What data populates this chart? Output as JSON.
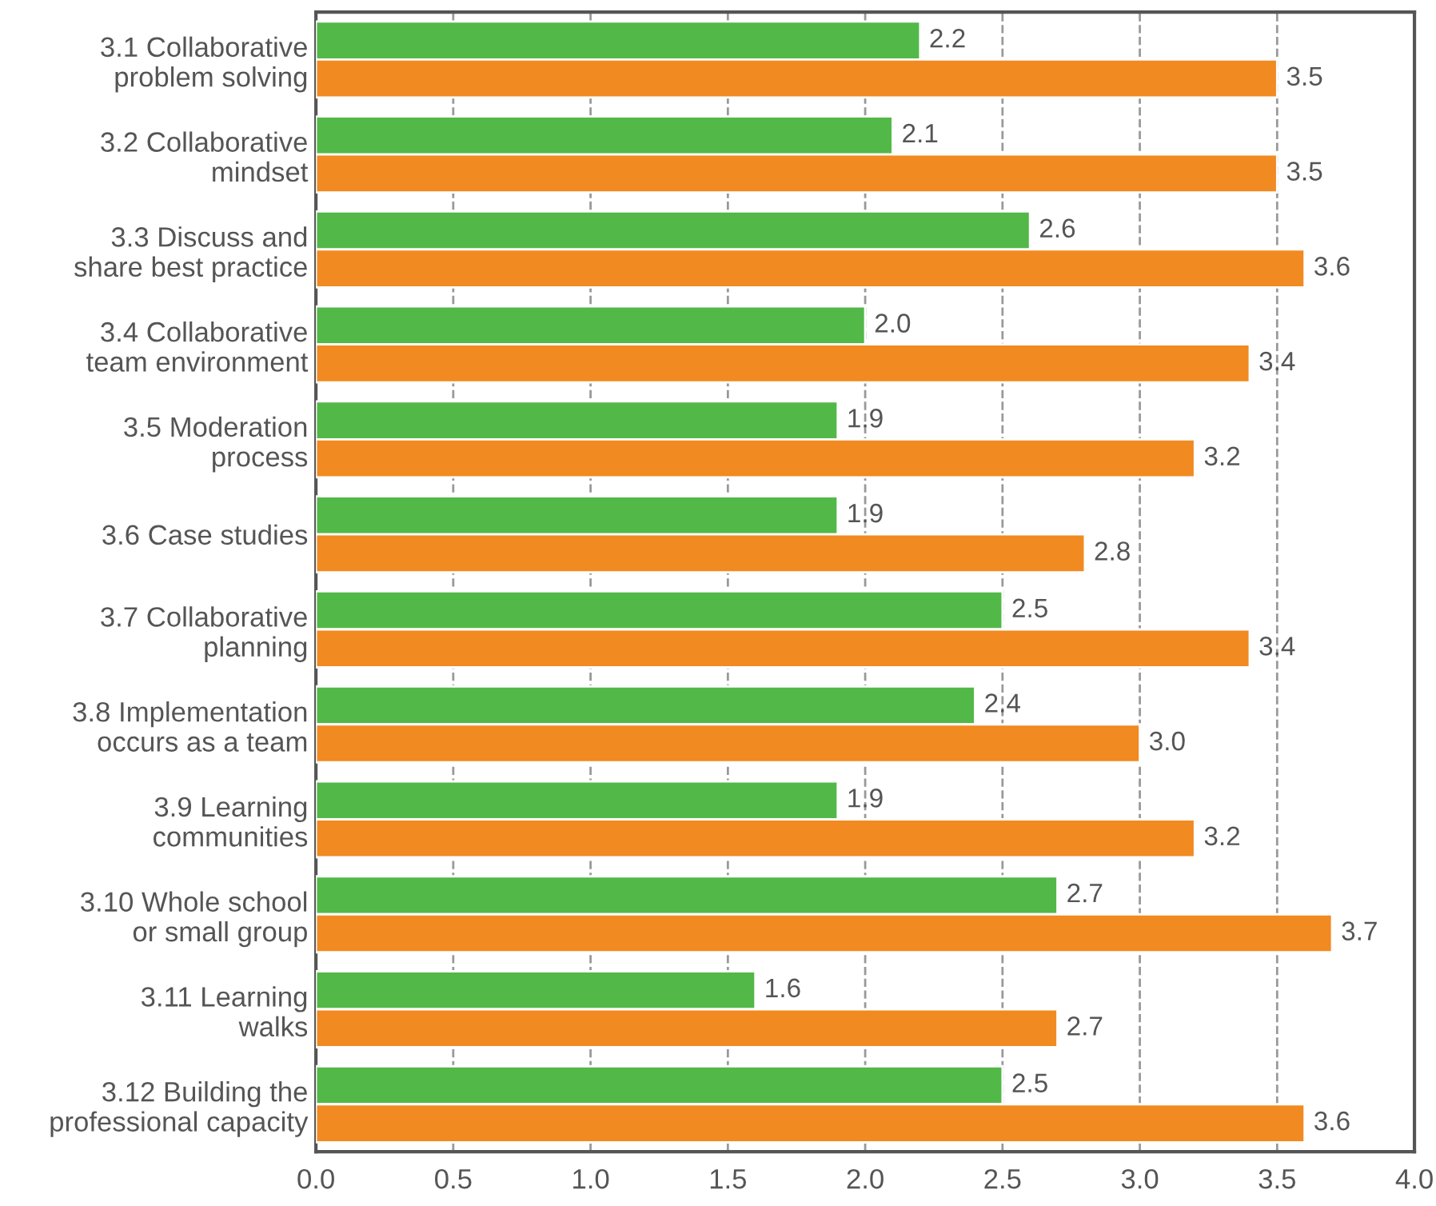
{
  "chart_data": {
    "type": "bar",
    "orientation": "horizontal",
    "categories": [
      "3.1 Collaborative\nproblem solving",
      "3.2 Collaborative\nmindset",
      "3.3 Discuss and\nshare best practice",
      "3.4 Collaborative\nteam environment",
      "3.5 Moderation\nprocess",
      "3.6 Case studies",
      "3.7 Collaborative\nplanning",
      "3.8 Implementation\noccurs as a team",
      "3.9 Learning\ncommunities",
      "3.10 Whole school\nor small group",
      "3.11 Learning\nwalks",
      "3.12 Building the\nprofessional capacity"
    ],
    "series": [
      {
        "color": "#52b848",
        "values": [
          2.2,
          2.1,
          2.6,
          2.0,
          1.9,
          1.9,
          2.5,
          2.4,
          1.9,
          2.7,
          1.6,
          2.5
        ],
        "value_labels": [
          "2.2",
          "2.1",
          "2.6",
          "2.0",
          "1.9",
          "1.9",
          "2.5",
          "2.4",
          "1.9",
          "2.7",
          "1.6",
          "2.5"
        ]
      },
      {
        "color": "#f18a21",
        "values": [
          3.5,
          3.5,
          3.6,
          3.4,
          3.2,
          2.8,
          3.4,
          3.0,
          3.2,
          3.7,
          2.7,
          3.6
        ],
        "value_labels": [
          "3.5",
          "3.5",
          "3.6",
          "3.4",
          "3.2",
          "2.8",
          "3.4",
          "3.0",
          "3.2",
          "3.7",
          "2.7",
          "3.6"
        ]
      }
    ],
    "xlim": [
      0,
      4
    ],
    "xticks": [
      {
        "value": 0,
        "label": "0.0"
      },
      {
        "value": 0.5,
        "label": "0.5"
      },
      {
        "value": 1,
        "label": "1.0"
      },
      {
        "value": 1.5,
        "label": "1.5"
      },
      {
        "value": 2,
        "label": "2.0"
      },
      {
        "value": 2.5,
        "label": "2.5"
      },
      {
        "value": 3,
        "label": "3.0"
      },
      {
        "value": 3.5,
        "label": "3.5"
      },
      {
        "value": 4,
        "label": "4.0"
      }
    ],
    "grid": "x",
    "line_style": "dashed",
    "legend": false
  }
}
